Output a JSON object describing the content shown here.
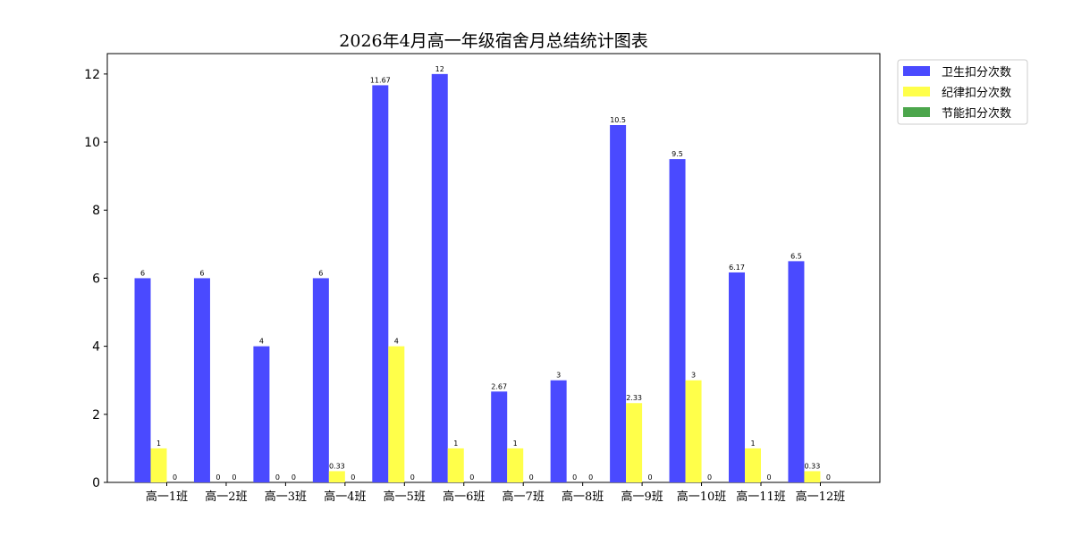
{
  "chart_data": {
    "type": "bar",
    "title": "2026年4月高一年级宿舍月总结统计图表",
    "xlabel": "",
    "ylabel": "",
    "categories": [
      "高一1班",
      "高一2班",
      "高一3班",
      "高一4班",
      "高一5班",
      "高一6班",
      "高一7班",
      "高一8班",
      "高一9班",
      "高一10班",
      "高一11班",
      "高一12班"
    ],
    "series": [
      {
        "name": "卫生扣分次数",
        "color": "#4a4aff",
        "values": [
          6,
          6,
          4,
          6,
          11.67,
          12,
          2.67,
          3,
          10.5,
          9.5,
          6.17,
          6.5
        ]
      },
      {
        "name": "纪律扣分次数",
        "color": "#ffff4a",
        "values": [
          1,
          0,
          0,
          0.33,
          4,
          1,
          1,
          0,
          2.33,
          3,
          1,
          0.33
        ]
      },
      {
        "name": "节能扣分次数",
        "color": "#4ca64c",
        "values": [
          0,
          0,
          0,
          0,
          0,
          0,
          0,
          0,
          0,
          0,
          0,
          0
        ]
      }
    ],
    "ylim": [
      0,
      12.6
    ],
    "yticks": [
      0,
      2,
      4,
      6,
      8,
      10,
      12
    ],
    "grid": false,
    "legend_position": "outside-top-right"
  }
}
